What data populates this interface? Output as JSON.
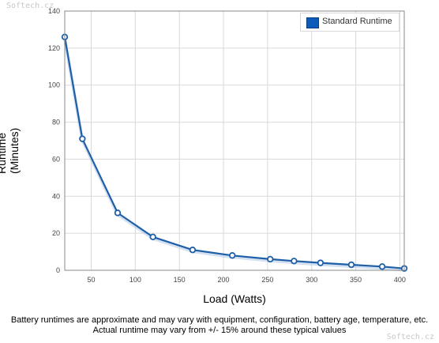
{
  "watermark": {
    "top": "Softech.cz",
    "bottom": "Softech.cz"
  },
  "note": {
    "line1": "Battery runtimes are approximate and may vary with equipment, configuration, battery age, temperature, etc.",
    "line2": "Actual runtime may vary from +/- 15% around these typical values"
  },
  "chart_data": {
    "type": "line",
    "title": "",
    "xlabel": "Load (Watts)",
    "ylabel_line1": "Runtime",
    "ylabel_line2": "(Minutes)",
    "xlim": [
      20,
      405
    ],
    "ylim": [
      0,
      140
    ],
    "x_ticks": [
      50,
      100,
      150,
      200,
      250,
      300,
      350,
      400
    ],
    "y_ticks": [
      0,
      20,
      40,
      60,
      80,
      100,
      120,
      140
    ],
    "grid": true,
    "legend_position": "top-right",
    "colors": {
      "line": "#1f5fa8",
      "fill": "#0a5cb8",
      "grid": "#d9d9d9",
      "frame": "#888888"
    },
    "series": [
      {
        "name": "Standard Runtime",
        "x": [
          20,
          40,
          80,
          120,
          165,
          210,
          253,
          280,
          310,
          345,
          380,
          405
        ],
        "y": [
          126,
          71,
          31,
          18,
          11,
          8,
          6,
          5,
          4,
          3,
          2,
          1
        ]
      }
    ]
  }
}
